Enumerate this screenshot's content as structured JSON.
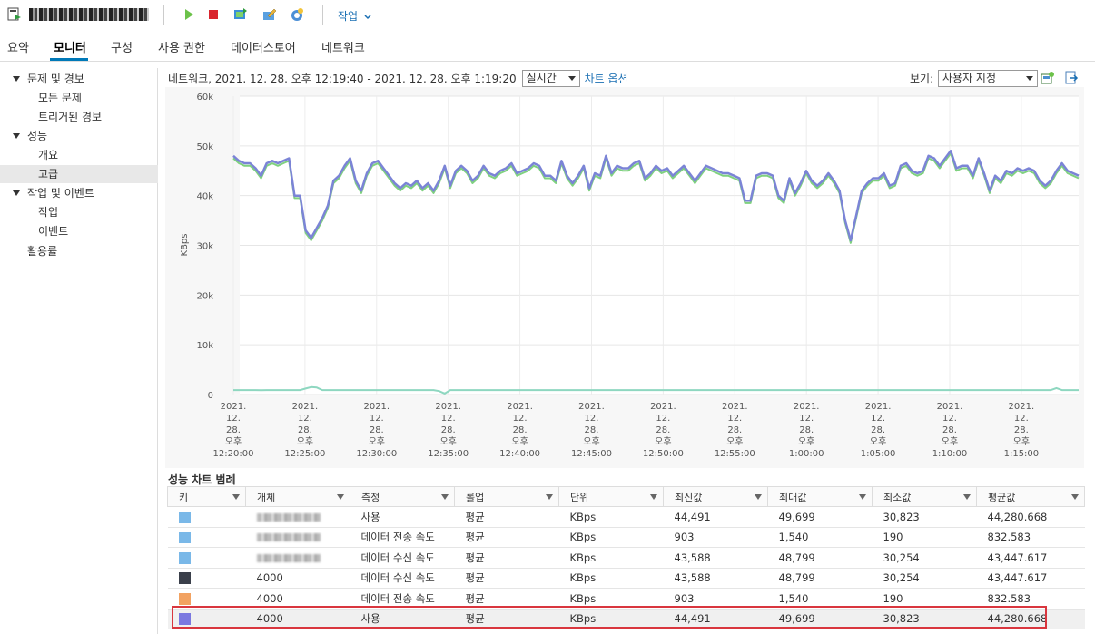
{
  "toolbar": {
    "host_name": "████ ██ ████",
    "action_menu_label": "작업",
    "icons": [
      "host-icon",
      "play-icon",
      "stop-icon",
      "migrate-icon",
      "edit-settings-icon",
      "snapshot-icon"
    ]
  },
  "tabs": [
    {
      "label": "요약",
      "active": false
    },
    {
      "label": "모니터",
      "active": true
    },
    {
      "label": "구성",
      "active": false
    },
    {
      "label": "사용 권한",
      "active": false
    },
    {
      "label": "데이터스토어",
      "active": false
    },
    {
      "label": "네트워크",
      "active": false
    }
  ],
  "sidebar": {
    "items": [
      {
        "label": "문제 및 경보",
        "level": 0,
        "expanded": true
      },
      {
        "label": "모든 문제",
        "level": 1
      },
      {
        "label": "트리거된 경보",
        "level": 1
      },
      {
        "label": "성능",
        "level": 0,
        "expanded": true
      },
      {
        "label": "개요",
        "level": 1
      },
      {
        "label": "고급",
        "level": 1,
        "selected": true
      },
      {
        "label": "작업 및 이벤트",
        "level": 0,
        "expanded": true
      },
      {
        "label": "작업",
        "level": 1
      },
      {
        "label": "이벤트",
        "level": 1
      },
      {
        "label": "활용률",
        "level": 0,
        "expanded": false
      }
    ]
  },
  "header": {
    "range_title": "네트워크, 2021. 12. 28. 오후 12:19:40 - 2021. 12. 28. 오후 1:19:20",
    "period_select": "실시간",
    "chart_options_link": "차트 옵션",
    "view_label": "보기:",
    "view_select": "사용자 지정"
  },
  "chart_data": {
    "type": "line",
    "ylabel": "KBps",
    "ylim": [
      0,
      60000
    ],
    "yticks": [
      "0",
      "10k",
      "20k",
      "30k",
      "40k",
      "50k",
      "60k"
    ],
    "xticks": [
      [
        "2021.",
        "12.",
        "28.",
        "오후",
        "12:20:00"
      ],
      [
        "2021.",
        "12.",
        "28.",
        "오후",
        "12:25:00"
      ],
      [
        "2021.",
        "12.",
        "28.",
        "오후",
        "12:30:00"
      ],
      [
        "2021.",
        "12.",
        "28.",
        "오후",
        "12:35:00"
      ],
      [
        "2021.",
        "12.",
        "28.",
        "오후",
        "12:40:00"
      ],
      [
        "2021.",
        "12.",
        "28.",
        "오후",
        "12:45:00"
      ],
      [
        "2021.",
        "12.",
        "28.",
        "오후",
        "12:50:00"
      ],
      [
        "2021.",
        "12.",
        "28.",
        "오후",
        "12:55:00"
      ],
      [
        "2021.",
        "12.",
        "28.",
        "오후",
        "1:00:00"
      ],
      [
        "2021.",
        "12.",
        "28.",
        "오후",
        "1:05:00"
      ],
      [
        "2021.",
        "12.",
        "28.",
        "오후",
        "1:10:00"
      ],
      [
        "2021.",
        "12.",
        "28.",
        "오후",
        "1:15:00"
      ]
    ],
    "x_start_minute": 20,
    "x_end_minute": 79,
    "grid": true,
    "series": [
      {
        "color": "#7b84d6",
        "values": [
          48000,
          47000,
          46500,
          46500,
          45500,
          44000,
          46500,
          47000,
          46500,
          47000,
          47500,
          40000,
          40000,
          33000,
          31500,
          33500,
          35500,
          38000,
          43000,
          44000,
          46000,
          47500,
          43000,
          41000,
          44500,
          46500,
          47000,
          45500,
          44000,
          42500,
          41500,
          42500,
          42000,
          43000,
          41500,
          42500,
          41000,
          43000,
          46000,
          42000,
          45000,
          46000,
          45000,
          43000,
          44000,
          46000,
          44500,
          44000,
          45000,
          45500,
          46500,
          44500,
          45000,
          45500,
          46500,
          46000,
          44000,
          44000,
          43000,
          47000,
          44000,
          42500,
          44000,
          46000,
          41500,
          44500,
          44000,
          48000,
          44500,
          46000,
          45500,
          45500,
          46500,
          47000,
          43500,
          44500,
          46000,
          45000,
          45500,
          44000,
          45000,
          46000,
          44500,
          43000,
          44500,
          46000,
          45500,
          45000,
          44500,
          44500,
          44000,
          43500,
          39000,
          39000,
          44000,
          44500,
          44500,
          44000,
          40000,
          39000,
          43500,
          40500,
          42500,
          45000,
          43000,
          42000,
          43000,
          44500,
          43000,
          41000,
          35000,
          31000,
          36000,
          41000,
          42500,
          43500,
          43500,
          44500,
          42000,
          42500,
          46000,
          46500,
          45000,
          44500,
          45000,
          48000,
          47500,
          46000,
          47500,
          49000,
          45500,
          46000,
          46000,
          44000,
          47500,
          44500,
          41000,
          44000,
          43000,
          45000,
          44500,
          45500,
          45000,
          45500,
          45000,
          43000,
          42000,
          43000,
          45000,
          46500,
          45000,
          44500,
          44000
        ]
      },
      {
        "color": "#7fd17f",
        "values": [
          47500,
          46500,
          46000,
          46000,
          45000,
          43500,
          46000,
          46500,
          46000,
          46500,
          47000,
          39500,
          39500,
          32500,
          31000,
          33000,
          35000,
          37500,
          42500,
          43500,
          45500,
          47000,
          42500,
          40500,
          44000,
          46000,
          46500,
          45000,
          43500,
          42000,
          41000,
          42000,
          41500,
          42500,
          41000,
          42000,
          40500,
          42500,
          45500,
          41500,
          44500,
          45500,
          44500,
          42500,
          43500,
          45500,
          44000,
          43500,
          44500,
          45000,
          46000,
          44000,
          44500,
          45000,
          46000,
          45500,
          43500,
          43500,
          42500,
          46500,
          43500,
          42000,
          43500,
          45500,
          41000,
          44000,
          43500,
          47500,
          44000,
          45500,
          45000,
          45000,
          46000,
          46500,
          43000,
          44000,
          45500,
          44500,
          45000,
          43500,
          44500,
          45500,
          44000,
          42500,
          44000,
          45500,
          45000,
          44500,
          44000,
          44000,
          43500,
          43000,
          38500,
          38500,
          43500,
          44000,
          44000,
          43500,
          39500,
          38500,
          43000,
          40000,
          42000,
          44500,
          42500,
          41500,
          42500,
          44000,
          42500,
          40500,
          34500,
          30500,
          35500,
          40500,
          42000,
          43000,
          43000,
          44000,
          41500,
          42000,
          45500,
          46000,
          44500,
          44000,
          44500,
          47500,
          47000,
          45500,
          47000,
          48500,
          45000,
          45500,
          45500,
          43500,
          47000,
          44000,
          40500,
          43500,
          42500,
          44500,
          44000,
          45000,
          44500,
          45000,
          44500,
          42500,
          41500,
          42500,
          44500,
          46000,
          44500,
          44000,
          43500
        ]
      },
      {
        "color": "#8ed7c0",
        "values": [
          900,
          900,
          900,
          900,
          900,
          850,
          900,
          900,
          900,
          900,
          900,
          900,
          900,
          1200,
          1500,
          1400,
          900,
          900,
          900,
          900,
          900,
          900,
          900,
          900,
          900,
          900,
          900,
          900,
          900,
          900,
          900,
          900,
          900,
          900,
          900,
          900,
          900,
          700,
          200,
          900,
          900,
          900,
          900,
          900,
          900,
          900,
          900,
          900,
          900,
          900,
          900,
          900,
          900,
          900,
          900,
          900,
          900,
          900,
          900,
          900,
          900,
          900,
          900,
          900,
          900,
          900,
          900,
          900,
          900,
          900,
          900,
          900,
          900,
          900,
          900,
          900,
          900,
          900,
          900,
          900,
          900,
          900,
          900,
          900,
          900,
          900,
          900,
          900,
          900,
          900,
          900,
          900,
          900,
          900,
          900,
          900,
          900,
          900,
          900,
          900,
          900,
          900,
          900,
          900,
          900,
          900,
          900,
          900,
          900,
          900,
          900,
          900,
          900,
          900,
          900,
          900,
          900,
          900,
          900,
          900,
          900,
          900,
          900,
          900,
          900,
          900,
          900,
          900,
          900,
          900,
          900,
          900,
          900,
          900,
          900,
          900,
          900,
          900,
          900,
          900,
          900,
          900,
          900,
          900,
          900,
          900,
          900,
          900,
          1300,
          900,
          900,
          900,
          900
        ]
      }
    ]
  },
  "legend": {
    "title": "성능 차트 범례",
    "columns": [
      "키",
      "개체",
      "측정",
      "롤업",
      "단위",
      "최신값",
      "최대값",
      "최소값",
      "평균값"
    ],
    "rows": [
      {
        "color": "#7ab8e8",
        "object": "",
        "blurred": true,
        "measure": "사용",
        "rollup": "평균",
        "unit": "KBps",
        "latest": "44,491",
        "max": "49,699",
        "min": "30,823",
        "avg": "44,280.668"
      },
      {
        "color": "#7ab8e8",
        "object": "",
        "blurred": true,
        "measure": "데이터 전송 속도",
        "rollup": "평균",
        "unit": "KBps",
        "latest": "903",
        "max": "1,540",
        "min": "190",
        "avg": "832.583"
      },
      {
        "color": "#7ab8e8",
        "object": "",
        "blurred": true,
        "measure": "데이터 수신 속도",
        "rollup": "평균",
        "unit": "KBps",
        "latest": "43,588",
        "max": "48,799",
        "min": "30,254",
        "avg": "43,447.617"
      },
      {
        "color": "#3a3f4a",
        "object": "4000",
        "blurred": false,
        "measure": "데이터 수신 속도",
        "rollup": "평균",
        "unit": "KBps",
        "latest": "43,588",
        "max": "48,799",
        "min": "30,254",
        "avg": "43,447.617"
      },
      {
        "color": "#f2a261",
        "object": "4000",
        "blurred": false,
        "measure": "데이터 전송 속도",
        "rollup": "평균",
        "unit": "KBps",
        "latest": "903",
        "max": "1,540",
        "min": "190",
        "avg": "832.583"
      },
      {
        "color": "#7b78e0",
        "object": "4000",
        "blurred": false,
        "measure": "사용",
        "rollup": "평균",
        "unit": "KBps",
        "latest": "44,491",
        "max": "49,699",
        "min": "30,823",
        "avg": "44,280.668",
        "highlighted": true
      }
    ]
  }
}
